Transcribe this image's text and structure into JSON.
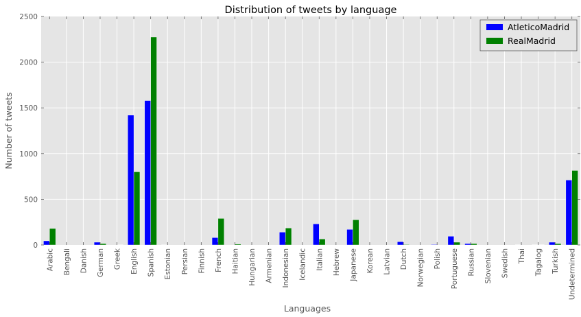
{
  "chart_data": {
    "type": "bar",
    "title": "Distribution of tweets by language",
    "xlabel": "Languages",
    "ylabel": "Number of tweets",
    "ylim": [
      0,
      2500
    ],
    "yticks": [
      "0",
      "500",
      "1000",
      "1500",
      "2000",
      "2500"
    ],
    "grid": true,
    "legend_position": "top-right",
    "categories": [
      "Arabic",
      "Bengali",
      "Danish",
      "German",
      "Greek",
      "English",
      "Spanish",
      "Estonian",
      "Persian",
      "Finnish",
      "French",
      "Haitian",
      "Hungarian",
      "Armenian",
      "Indonesian",
      "Icelandic",
      "Italian",
      "Hebrew",
      "Japanese",
      "Korean",
      "Latvian",
      "Dutch",
      "Norwegian",
      "Polish",
      "Portuguese",
      "Russian",
      "Slovenian",
      "Swedish",
      "Thai",
      "Tagalog",
      "Turkish",
      "Undetermined"
    ],
    "series": [
      {
        "name": "AtleticoMadrid",
        "color": "#0000ff",
        "values": [
          45,
          0,
          0,
          30,
          0,
          1420,
          1580,
          2,
          0,
          0,
          80,
          0,
          0,
          0,
          140,
          0,
          230,
          0,
          170,
          0,
          0,
          35,
          0,
          5,
          95,
          15,
          0,
          0,
          3,
          3,
          30,
          710
        ]
      },
      {
        "name": "RealMadrid",
        "color": "#008000",
        "values": [
          180,
          0,
          0,
          15,
          2,
          800,
          2275,
          0,
          0,
          0,
          290,
          10,
          0,
          0,
          185,
          0,
          65,
          0,
          275,
          0,
          0,
          5,
          0,
          0,
          30,
          15,
          0,
          0,
          0,
          3,
          15,
          815
        ]
      }
    ]
  }
}
